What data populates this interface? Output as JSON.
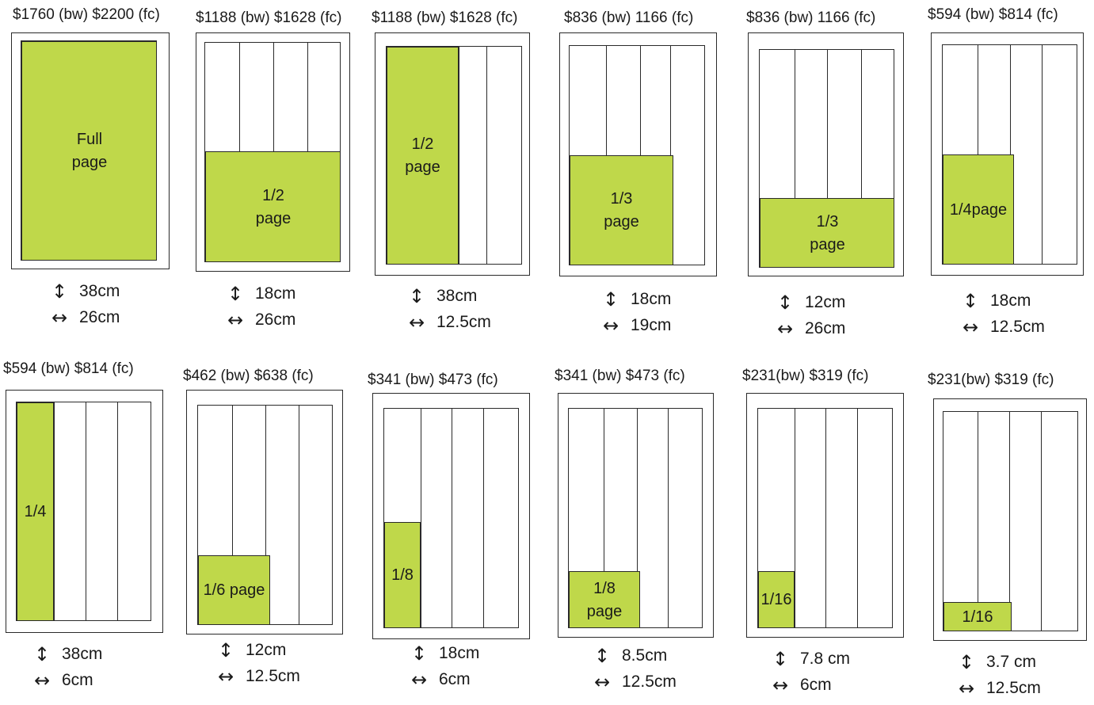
{
  "icons": {
    "height": "vertical-arrow-icon",
    "width": "horizontal-arrow-icon"
  },
  "colors": {
    "fill": "#bfd84a",
    "line": "#2a2a2a"
  },
  "ads": [
    {
      "price": "$1760 (bw)  $2200 (fc)",
      "label": "Full\npage",
      "height": "38cm",
      "width": "26cm"
    },
    {
      "price": "$1188 (bw)  $1628 (fc)",
      "label": "1/2\npage",
      "height": "18cm",
      "width": "26cm"
    },
    {
      "price": "$1188 (bw)  $1628 (fc)",
      "label": "1/2\npage",
      "height": "38cm",
      "width": "12.5cm"
    },
    {
      "price": "$836 (bw)  1166 (fc)",
      "label": "1/3\npage",
      "height": "18cm",
      "width": "19cm"
    },
    {
      "price": "$836 (bw)  1166 (fc)",
      "label": "1/3\npage",
      "height": "12cm",
      "width": "26cm"
    },
    {
      "price": "$594 (bw)  $814 (fc)",
      "label": "1/4page",
      "height": "18cm",
      "width": "12.5cm"
    },
    {
      "price": "$594 (bw)  $814 (fc)",
      "label": "1/4",
      "height": "38cm",
      "width": "6cm"
    },
    {
      "price": "$462 (bw)  $638 (fc)",
      "label": "1/6 page",
      "height": "12cm",
      "width": "12.5cm"
    },
    {
      "price": "$341 (bw)  $473 (fc)",
      "label": "1/8",
      "height": "18cm",
      "width": "6cm"
    },
    {
      "price": "$341 (bw)  $473 (fc)",
      "label": "1/8\npage",
      "height": "8.5cm",
      "width": "12.5cm"
    },
    {
      "price": "$231(bw)  $319 (fc)",
      "label": "1/16",
      "height": "7.8 cm",
      "width": "6cm"
    },
    {
      "price": "$231(bw)  $319 (fc)",
      "label": "1/16",
      "height": "3.7 cm",
      "width": "12.5cm"
    }
  ]
}
